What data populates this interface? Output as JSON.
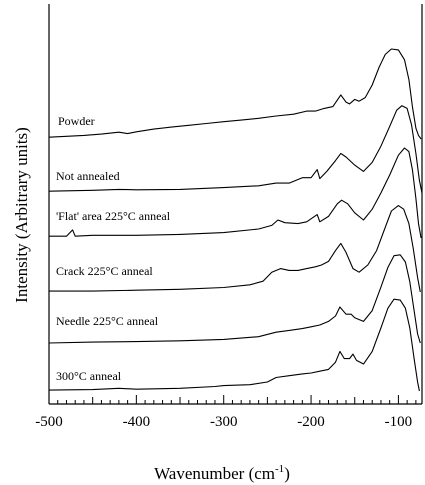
{
  "chart_data": {
    "type": "line",
    "title": "",
    "xlabel_main": "Wavenumber (cm",
    "xlabel_sup": "-1",
    "xlabel_close": ")",
    "ylabel": "Intensity (Arbitrary units)",
    "xlim": [
      -500,
      -73
    ],
    "x_ticks": [
      -500,
      -400,
      -300,
      -200,
      -100
    ],
    "x_tick_labels": [
      "-500",
      "-400",
      "-300",
      "-200",
      "-100"
    ],
    "y_ticks_shown": false,
    "grid": false,
    "legend": "none",
    "series": [
      {
        "name": "Powder",
        "points": [
          [
            -500,
            0.1
          ],
          [
            -480,
            0.15
          ],
          [
            -460,
            0.2
          ],
          [
            -440,
            0.27
          ],
          [
            -420,
            0.38
          ],
          [
            -410,
            0.3
          ],
          [
            -400,
            0.4
          ],
          [
            -380,
            0.55
          ],
          [
            -360,
            0.66
          ],
          [
            -340,
            0.76
          ],
          [
            -320,
            0.86
          ],
          [
            -300,
            0.96
          ],
          [
            -280,
            1.05
          ],
          [
            -260,
            1.15
          ],
          [
            -240,
            1.28
          ],
          [
            -220,
            1.38
          ],
          [
            -205,
            1.55
          ],
          [
            -195,
            1.55
          ],
          [
            -185,
            1.7
          ],
          [
            -175,
            1.8
          ],
          [
            -166,
            2.45
          ],
          [
            -160,
            2.05
          ],
          [
            -156,
            1.95
          ],
          [
            -150,
            2.2
          ],
          [
            -145,
            2.1
          ],
          [
            -138,
            2.3
          ],
          [
            -130,
            3.0
          ],
          [
            -122,
            4.0
          ],
          [
            -115,
            4.7
          ],
          [
            -108,
            5.0
          ],
          [
            -100,
            4.95
          ],
          [
            -93,
            4.4
          ],
          [
            -88,
            3.3
          ],
          [
            -84,
            1.8
          ],
          [
            -80,
            0.6
          ],
          [
            -77,
            0.2
          ],
          [
            -74,
            0.0
          ]
        ]
      },
      {
        "name": "Not annealed",
        "points": [
          [
            -500,
            0.1
          ],
          [
            -450,
            0.15
          ],
          [
            -420,
            0.2
          ],
          [
            -400,
            0.18
          ],
          [
            -350,
            0.2
          ],
          [
            -300,
            0.3
          ],
          [
            -260,
            0.4
          ],
          [
            -240,
            0.55
          ],
          [
            -225,
            0.55
          ],
          [
            -210,
            0.85
          ],
          [
            -200,
            0.85
          ],
          [
            -193,
            1.3
          ],
          [
            -190,
            0.8
          ],
          [
            -182,
            1.2
          ],
          [
            -172,
            1.8
          ],
          [
            -166,
            2.2
          ],
          [
            -160,
            2.0
          ],
          [
            -150,
            1.55
          ],
          [
            -140,
            1.2
          ],
          [
            -130,
            1.7
          ],
          [
            -120,
            2.6
          ],
          [
            -110,
            3.7
          ],
          [
            -102,
            4.6
          ],
          [
            -96,
            4.85
          ],
          [
            -90,
            4.7
          ],
          [
            -85,
            3.8
          ],
          [
            -80,
            2.2
          ],
          [
            -76,
            0.7
          ],
          [
            -73,
            0.0
          ]
        ]
      },
      {
        "name": "'Flat' area 225°C anneal",
        "points": [
          [
            -500,
            0.1
          ],
          [
            -480,
            0.1
          ],
          [
            -473,
            0.45
          ],
          [
            -470,
            0.1
          ],
          [
            -450,
            0.15
          ],
          [
            -400,
            0.15
          ],
          [
            -350,
            0.2
          ],
          [
            -300,
            0.3
          ],
          [
            -260,
            0.5
          ],
          [
            -245,
            0.7
          ],
          [
            -238,
            1.0
          ],
          [
            -230,
            0.85
          ],
          [
            -215,
            0.8
          ],
          [
            -205,
            0.9
          ],
          [
            -193,
            1.3
          ],
          [
            -190,
            0.9
          ],
          [
            -180,
            1.2
          ],
          [
            -170,
            1.9
          ],
          [
            -165,
            2.1
          ],
          [
            -158,
            1.9
          ],
          [
            -150,
            1.4
          ],
          [
            -140,
            1.0
          ],
          [
            -130,
            1.6
          ],
          [
            -120,
            2.5
          ],
          [
            -110,
            3.5
          ],
          [
            -100,
            4.6
          ],
          [
            -93,
            5.0
          ],
          [
            -88,
            4.8
          ],
          [
            -84,
            3.8
          ],
          [
            -80,
            2.2
          ],
          [
            -77,
            0.8
          ],
          [
            -74,
            0.0
          ]
        ]
      },
      {
        "name": "Crack 225°C anneal",
        "points": [
          [
            -500,
            0.05
          ],
          [
            -450,
            0.05
          ],
          [
            -400,
            0.1
          ],
          [
            -350,
            0.15
          ],
          [
            -300,
            0.25
          ],
          [
            -270,
            0.4
          ],
          [
            -255,
            0.6
          ],
          [
            -245,
            1.1
          ],
          [
            -235,
            1.3
          ],
          [
            -225,
            1.2
          ],
          [
            -215,
            1.2
          ],
          [
            -205,
            1.3
          ],
          [
            -195,
            1.4
          ],
          [
            -188,
            1.5
          ],
          [
            -180,
            1.7
          ],
          [
            -172,
            2.3
          ],
          [
            -166,
            2.7
          ],
          [
            -160,
            2.2
          ],
          [
            -152,
            1.3
          ],
          [
            -145,
            1.1
          ],
          [
            -135,
            1.5
          ],
          [
            -125,
            2.3
          ],
          [
            -115,
            3.6
          ],
          [
            -108,
            4.5
          ],
          [
            -100,
            4.8
          ],
          [
            -94,
            4.6
          ],
          [
            -88,
            3.8
          ],
          [
            -83,
            2.4
          ],
          [
            -78,
            0.8
          ],
          [
            -75,
            0.0
          ]
        ]
      },
      {
        "name": "Needle 225°C anneal",
        "points": [
          [
            -500,
            0.0
          ],
          [
            -450,
            0.05
          ],
          [
            -400,
            0.08
          ],
          [
            -350,
            0.12
          ],
          [
            -300,
            0.2
          ],
          [
            -260,
            0.35
          ],
          [
            -240,
            0.6
          ],
          [
            -225,
            0.7
          ],
          [
            -210,
            0.8
          ],
          [
            -200,
            0.9
          ],
          [
            -190,
            1.0
          ],
          [
            -180,
            1.2
          ],
          [
            -172,
            1.5
          ],
          [
            -167,
            2.0
          ],
          [
            -160,
            1.6
          ],
          [
            -154,
            1.6
          ],
          [
            -150,
            1.4
          ],
          [
            -140,
            1.2
          ],
          [
            -130,
            1.8
          ],
          [
            -120,
            3.1
          ],
          [
            -112,
            4.2
          ],
          [
            -105,
            4.85
          ],
          [
            -98,
            4.9
          ],
          [
            -92,
            4.5
          ],
          [
            -87,
            3.4
          ],
          [
            -82,
            1.8
          ],
          [
            -78,
            0.5
          ],
          [
            -75,
            0.0
          ]
        ]
      },
      {
        "name": "300°C anneal",
        "points": [
          [
            -500,
            0.05
          ],
          [
            -450,
            0.08
          ],
          [
            -420,
            0.15
          ],
          [
            -400,
            0.1
          ],
          [
            -350,
            0.15
          ],
          [
            -310,
            0.25
          ],
          [
            -300,
            0.3
          ],
          [
            -270,
            0.35
          ],
          [
            -250,
            0.5
          ],
          [
            -240,
            0.75
          ],
          [
            -225,
            0.85
          ],
          [
            -210,
            0.95
          ],
          [
            -200,
            1.0
          ],
          [
            -190,
            1.1
          ],
          [
            -180,
            1.2
          ],
          [
            -172,
            1.6
          ],
          [
            -167,
            2.2
          ],
          [
            -162,
            1.8
          ],
          [
            -156,
            1.8
          ],
          [
            -152,
            2.05
          ],
          [
            -148,
            1.7
          ],
          [
            -140,
            1.5
          ],
          [
            -130,
            2.2
          ],
          [
            -120,
            3.5
          ],
          [
            -112,
            4.6
          ],
          [
            -105,
            5.1
          ],
          [
            -98,
            5.05
          ],
          [
            -92,
            4.6
          ],
          [
            -87,
            3.5
          ],
          [
            -82,
            1.8
          ],
          [
            -78,
            0.5
          ],
          [
            -76,
            0.0
          ]
        ]
      }
    ]
  }
}
